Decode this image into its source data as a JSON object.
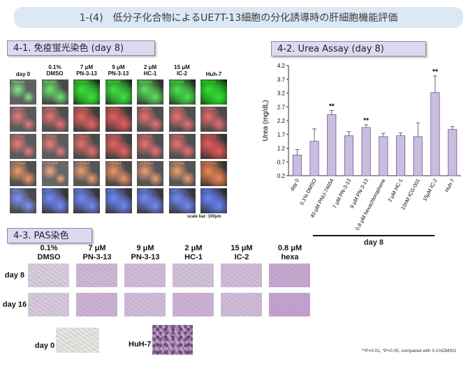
{
  "header": {
    "title": "1-(4)　低分子化合物によるUE7T-13細胞の分化誘導時の肝細胞機能評価"
  },
  "section_41": {
    "title": "4-1. 免疫蛍光染色 (day 8)",
    "columns": [
      {
        "l1": "day 0",
        "l2": ""
      },
      {
        "l1": "0.1%",
        "l2": "DMSO"
      },
      {
        "l1": "7 μM",
        "l2": "PN-3-13"
      },
      {
        "l1": "9 μM",
        "l2": "PN-3-13"
      },
      {
        "l1": "2 μM",
        "l2": "HC-1"
      },
      {
        "l1": "15 μM",
        "l2": "IC-2"
      },
      {
        "l1": "Huh-7",
        "l2": ""
      }
    ],
    "rows": [
      {
        "label": "Albumin",
        "color": "#2ee02e"
      },
      {
        "label": "C/EBPα",
        "color": "#e83030"
      },
      {
        "label": "CYP1A1",
        "color": "#e83030"
      },
      {
        "label": "CYP3A4",
        "color": "#ef6a2a"
      },
      {
        "label": "DAPI",
        "color": "#4a6aff"
      }
    ],
    "scalebar": "scale bar: 100μm"
  },
  "section_42": {
    "title": "4-2. Urea Assay (day 8)"
  },
  "section_43": {
    "title": "4-3. PAS染色",
    "columns": [
      {
        "l1": "0.1%",
        "l2": "DMSO"
      },
      {
        "l1": "7 μM",
        "l2": "PN-3-13"
      },
      {
        "l1": "9 μM",
        "l2": "PN-3-13"
      },
      {
        "l1": "2 μM",
        "l2": "HC-1"
      },
      {
        "l1": "15 μM",
        "l2": "IC-2"
      },
      {
        "l1": "0.8 μM",
        "l2": "hexa"
      }
    ],
    "rows": [
      "day 8",
      "day 16"
    ],
    "day0_label": "day 0",
    "huh7_label": "HuH-7"
  },
  "footnote": "**P<0.01, *P<0.05, compared with 0.1%DMSO",
  "chart_data": {
    "type": "bar",
    "title": "",
    "ylabel": "Urea (mg/dL)",
    "xlabel": "day 8",
    "ylim": [
      0.2,
      4.2
    ],
    "yticks": [
      0.2,
      0.7,
      1.2,
      1.7,
      2.2,
      2.7,
      3.2,
      3.7,
      4.2
    ],
    "categories": [
      "day 0",
      "0.1% DMSO",
      "40 μM PNU-74654",
      "7 μM PN-3-13",
      "9 μM PN-3-13",
      "0.8 μM hexachlorophene",
      "2 μM HC-1",
      "10nM ICG-001",
      "15μM IC-2",
      "Huh-7"
    ],
    "values": [
      0.95,
      1.45,
      2.42,
      1.65,
      1.95,
      1.62,
      1.65,
      1.62,
      3.22,
      1.88
    ],
    "errors": [
      0.2,
      0.45,
      0.15,
      0.15,
      0.1,
      0.12,
      0.1,
      0.5,
      0.6,
      0.1
    ],
    "significance": [
      "",
      "",
      "**",
      "",
      "**",
      "",
      "",
      "",
      "**",
      ""
    ],
    "bar_color": "#c9bde0"
  }
}
